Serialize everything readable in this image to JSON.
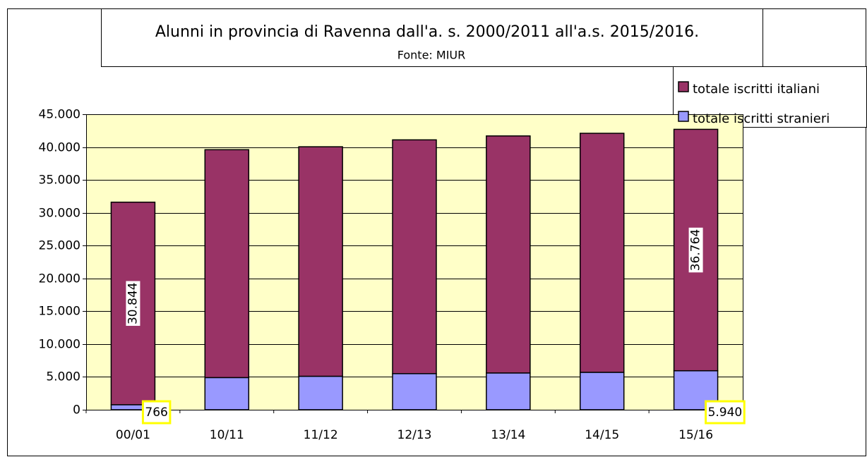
{
  "chart_data": {
    "type": "stacked_bar",
    "title": "Alunni in provincia di Ravenna dall'a. s. 2000/2011 all'a.s. 2015/2016.",
    "subtitle": "Fonte: MIUR",
    "categories": [
      "00/01",
      "10/11",
      "11/12",
      "12/13",
      "13/14",
      "14/15",
      "15/16"
    ],
    "series": [
      {
        "name": "totale iscritti stranieri",
        "color": "#9999ff",
        "values": [
          766,
          4900,
          5100,
          5500,
          5600,
          5700,
          5940
        ],
        "value_labels": [
          "766",
          null,
          null,
          null,
          null,
          null,
          "5.940"
        ]
      },
      {
        "name": "totale iscritti italiani",
        "color": "#993366",
        "values": [
          30844,
          34700,
          34950,
          35600,
          36100,
          36400,
          36764
        ],
        "value_labels": [
          "30.844",
          null,
          null,
          null,
          null,
          null,
          "36.764"
        ]
      }
    ],
    "ylim": [
      0,
      45000
    ],
    "yticks": [
      0,
      {
        "value": 5000,
        "label": "5.000"
      },
      {
        "value": 10000,
        "label": "10.000"
      },
      {
        "value": 15000,
        "label": "15.000"
      },
      {
        "value": 20000,
        "label": "20.000"
      },
      {
        "value": 25000,
        "label": "25.000"
      },
      {
        "value": 30000,
        "label": "30.000"
      },
      {
        "value": 35000,
        "label": "35.000"
      },
      {
        "value": 40000,
        "label": "40.000"
      },
      {
        "value": 45000,
        "label": "45.000"
      }
    ],
    "grid": true,
    "legend": "top-right"
  }
}
